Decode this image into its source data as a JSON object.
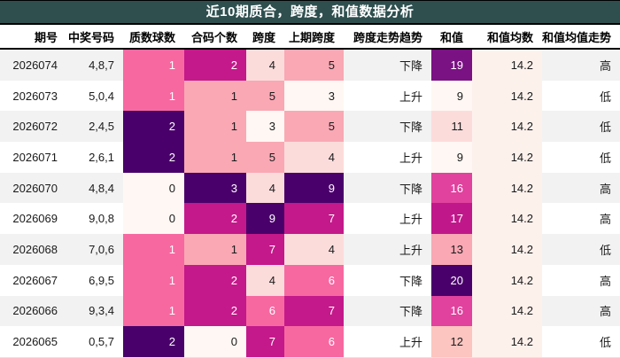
{
  "chart_data": {
    "type": "table",
    "title": "近10期质合，跨度，和值数据分析",
    "columns": [
      "期号",
      "中奖号码",
      "质数球数",
      "合码个数",
      "跨度",
      "上期跨度",
      "跨度走势趋势",
      "和值",
      "和值均数",
      "和值均值走势"
    ],
    "rows": [
      [
        "2026074",
        "4,8,7",
        "1",
        "2",
        "4",
        "5",
        "下降",
        "19",
        "14.2",
        "高"
      ],
      [
        "2026073",
        "5,0,4",
        "1",
        "1",
        "5",
        "3",
        "上升",
        "9",
        "14.2",
        "低"
      ],
      [
        "2026072",
        "2,4,5",
        "2",
        "1",
        "3",
        "5",
        "下降",
        "11",
        "14.2",
        "低"
      ],
      [
        "2026071",
        "2,6,1",
        "2",
        "1",
        "5",
        "4",
        "上升",
        "9",
        "14.2",
        "低"
      ],
      [
        "2026070",
        "4,8,4",
        "0",
        "3",
        "4",
        "9",
        "下降",
        "16",
        "14.2",
        "高"
      ],
      [
        "2026069",
        "9,0,8",
        "0",
        "2",
        "9",
        "7",
        "上升",
        "17",
        "14.2",
        "高"
      ],
      [
        "2026068",
        "7,0,6",
        "1",
        "1",
        "7",
        "4",
        "上升",
        "13",
        "14.2",
        "低"
      ],
      [
        "2026067",
        "6,9,5",
        "1",
        "2",
        "4",
        "6",
        "下降",
        "20",
        "14.2",
        "高"
      ],
      [
        "2026066",
        "9,3,4",
        "1",
        "2",
        "6",
        "7",
        "下降",
        "16",
        "14.2",
        "高"
      ],
      [
        "2026065",
        "0,5,7",
        "2",
        "0",
        "7",
        "6",
        "上升",
        "12",
        "14.2",
        "低"
      ]
    ]
  },
  "cell_colors": [
    [
      null,
      null,
      [
        "#f768a1",
        "#ffffff"
      ],
      [
        "#c4198a",
        "#ffffff"
      ],
      [
        "#fcdcdb",
        "#1a1a1a"
      ],
      [
        "#f9a8b4",
        "#1a1a1a"
      ],
      null,
      [
        "#7a1283",
        "#ffffff"
      ],
      [
        "#fdf1ec",
        "#1a1a1a"
      ],
      null
    ],
    [
      null,
      null,
      [
        "#f768a1",
        "#ffffff"
      ],
      [
        "#f9a8b4",
        "#1a1a1a"
      ],
      [
        "#f9a8b4",
        "#1a1a1a"
      ],
      [
        "#fff7f3",
        "#1a1a1a"
      ],
      null,
      [
        "#fff7f3",
        "#1a1a1a"
      ],
      [
        "#fdf1ec",
        "#1a1a1a"
      ],
      null
    ],
    [
      null,
      null,
      [
        "#49006a",
        "#ffffff"
      ],
      [
        "#f9a8b4",
        "#1a1a1a"
      ],
      [
        "#fff7f3",
        "#1a1a1a"
      ],
      [
        "#f9a8b4",
        "#1a1a1a"
      ],
      null,
      [
        "#fcdcdb",
        "#1a1a1a"
      ],
      [
        "#fdf1ec",
        "#1a1a1a"
      ],
      null
    ],
    [
      null,
      null,
      [
        "#49006a",
        "#ffffff"
      ],
      [
        "#f9a8b4",
        "#1a1a1a"
      ],
      [
        "#f9a8b4",
        "#1a1a1a"
      ],
      [
        "#fcdcdb",
        "#1a1a1a"
      ],
      null,
      [
        "#fff7f3",
        "#1a1a1a"
      ],
      [
        "#fdf1ec",
        "#1a1a1a"
      ],
      null
    ],
    [
      null,
      null,
      [
        "#fff7f3",
        "#1a1a1a"
      ],
      [
        "#49006a",
        "#ffffff"
      ],
      [
        "#fcdcdb",
        "#1a1a1a"
      ],
      [
        "#49006a",
        "#ffffff"
      ],
      null,
      [
        "#e0429d",
        "#ffffff"
      ],
      [
        "#fdf1ec",
        "#1a1a1a"
      ],
      null
    ],
    [
      null,
      null,
      [
        "#fff7f3",
        "#1a1a1a"
      ],
      [
        "#c4198a",
        "#ffffff"
      ],
      [
        "#49006a",
        "#ffffff"
      ],
      [
        "#c4198a",
        "#ffffff"
      ],
      null,
      [
        "#c0188a",
        "#ffffff"
      ],
      [
        "#fdf1ec",
        "#1a1a1a"
      ],
      null
    ],
    [
      null,
      null,
      [
        "#f768a1",
        "#ffffff"
      ],
      [
        "#f9a8b4",
        "#1a1a1a"
      ],
      [
        "#c4198a",
        "#ffffff"
      ],
      [
        "#fcdcdb",
        "#1a1a1a"
      ],
      null,
      [
        "#f9a8b4",
        "#1a1a1a"
      ],
      [
        "#fdf1ec",
        "#1a1a1a"
      ],
      null
    ],
    [
      null,
      null,
      [
        "#f768a1",
        "#ffffff"
      ],
      [
        "#c4198a",
        "#ffffff"
      ],
      [
        "#fcdcdb",
        "#1a1a1a"
      ],
      [
        "#f768a1",
        "#ffffff"
      ],
      null,
      [
        "#49006a",
        "#ffffff"
      ],
      [
        "#fdf1ec",
        "#1a1a1a"
      ],
      null
    ],
    [
      null,
      null,
      [
        "#f768a1",
        "#ffffff"
      ],
      [
        "#c4198a",
        "#ffffff"
      ],
      [
        "#f768a1",
        "#ffffff"
      ],
      [
        "#c4198a",
        "#ffffff"
      ],
      null,
      [
        "#e0429d",
        "#ffffff"
      ],
      [
        "#fdf1ec",
        "#1a1a1a"
      ],
      null
    ],
    [
      null,
      null,
      [
        "#49006a",
        "#ffffff"
      ],
      [
        "#fff7f3",
        "#1a1a1a"
      ],
      [
        "#c4198a",
        "#ffffff"
      ],
      [
        "#f768a1",
        "#ffffff"
      ],
      null,
      [
        "#fcc5c0",
        "#1a1a1a"
      ],
      [
        "#fdf1ec",
        "#1a1a1a"
      ],
      null
    ]
  ],
  "colors": {
    "title_bar_bg": "#2f4f4f",
    "title_text": "#ffffff",
    "stripe_odd": "#f2f2f2",
    "stripe_even": "#ffffff",
    "header_border": "#000000",
    "heatmap_palette": [
      "#fff7f3",
      "#fcdcdb",
      "#fcc5c0",
      "#f9a8b4",
      "#f768a1",
      "#e0429d",
      "#c4198a",
      "#7a1283",
      "#49006a"
    ]
  }
}
